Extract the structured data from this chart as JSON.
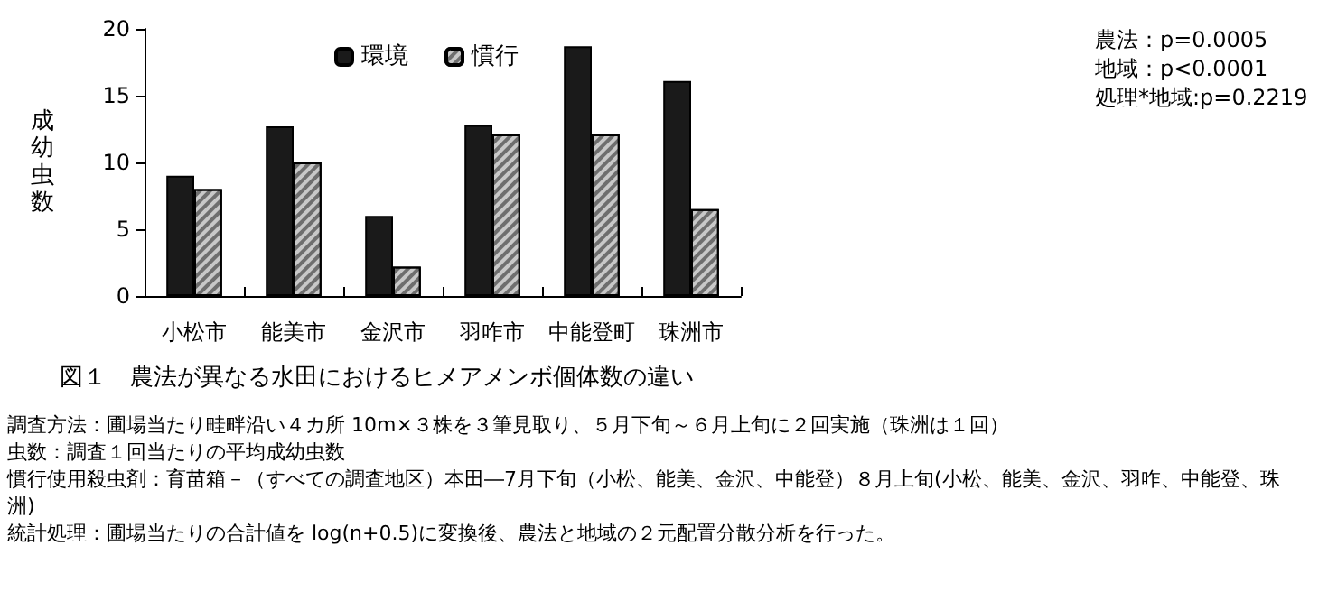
{
  "chart_data": {
    "type": "bar",
    "title": "図１　農法が異なる水田におけるヒメアメンボ個体数の違い",
    "ylabel": "成幼虫数",
    "categories": [
      "小松市",
      "能美市",
      "金沢市",
      "羽咋市",
      "中能登町",
      "珠洲市"
    ],
    "series": [
      {
        "name": "環境",
        "color": "#1a1a1a",
        "values": [
          9,
          12.7,
          6,
          12.8,
          18.7,
          16.1
        ]
      },
      {
        "name": "慣行",
        "color": "#c8c8c8",
        "values": [
          8,
          10,
          2.2,
          12.1,
          12.1,
          6.5
        ]
      }
    ],
    "ylim": [
      0,
      20
    ],
    "yticks": [
      0,
      5,
      10,
      15,
      20
    ],
    "grid": false,
    "legend": "top",
    "annotations": [
      "農法：p=0.0005",
      "地域：p<0.0001",
      "処理*地域:p=0.2219",
      "調査方法：圃場当たり畦畔沿い４カ所 10m×３株を３筆見取り、５月下旬～６月上旬に２回実施（珠洲は１回）",
      "虫数：調査１回当たりの平均成幼虫数",
      "慣行使用殺虫剤：育苗箱－（すべての調査地区）本田―7月下旬（小松、能美、金沢、中能登）８月上旬(小松、能美、金沢、羽咋、中能登、珠洲)",
      "統計処理：圃場当たりの合計値を log(n+0.5)に変換後、農法と地域の２元配置分散分析を行った。"
    ]
  }
}
